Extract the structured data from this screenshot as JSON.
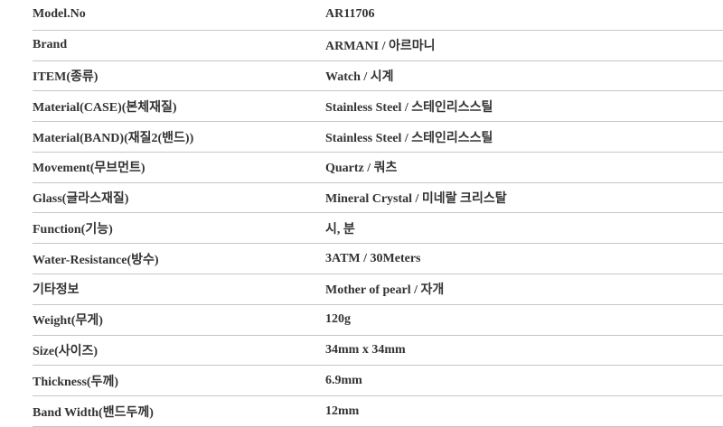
{
  "spec_table": {
    "colors": {
      "text": "#333333",
      "divider": "#c6c6c6",
      "background": "#ffffff"
    },
    "rows": [
      {
        "label": "Model.No",
        "value": "AR11706"
      },
      {
        "label": "Brand",
        "value": "ARMANI / 아르마니"
      },
      {
        "label": "ITEM(종류)",
        "value": "Watch / 시계"
      },
      {
        "label": "Material(CASE)(본체재질)",
        "value": "Stainless Steel / 스테인리스스틸"
      },
      {
        "label": "Material(BAND)(재질2(밴드))",
        "value": "Stainless Steel / 스테인리스스틸"
      },
      {
        "label": "Movement(무브먼트)",
        "value": "Quartz / 쿼츠"
      },
      {
        "label": "Glass(글라스재질)",
        "value": "Mineral Crystal / 미네랄 크리스탈"
      },
      {
        "label": "Function(기능)",
        "value": "시, 분"
      },
      {
        "label": "Water-Resistance(방수)",
        "value": "3ATM / 30Meters"
      },
      {
        "label": "기타정보",
        "value": "Mother of pearl / 자개"
      },
      {
        "label": "Weight(무게)",
        "value": "120g"
      },
      {
        "label": "Size(사이즈)",
        "value": "34mm x 34mm"
      },
      {
        "label": "Thickness(두께)",
        "value": "6.9mm"
      },
      {
        "label": "Band Width(밴드두께)",
        "value": "12mm"
      }
    ]
  }
}
